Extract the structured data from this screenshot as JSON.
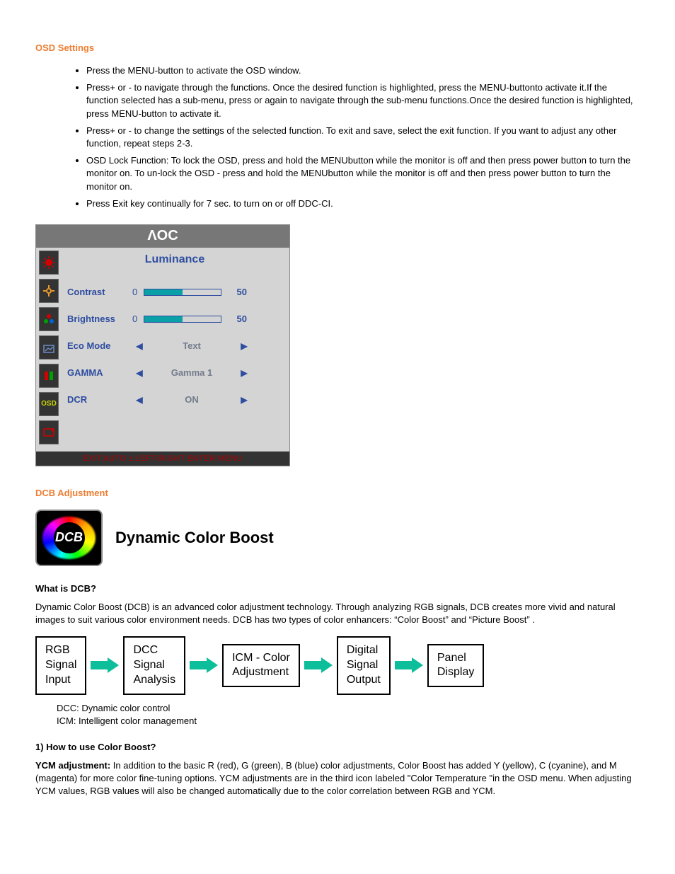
{
  "headings": {
    "osd_settings": "OSD Settings",
    "dcb_adjustment": "DCB Adjustment",
    "what_is_dcb": "What is DCB?",
    "how_to_use": "1) How to use Color Boost?"
  },
  "bullets": [
    "Press the MENU-button to activate the OSD window.",
    "Press+ or - to navigate through the functions. Once the desired function is highlighted, press the MENU-buttonto activate it.If the function selected has a sub-menu, press or again to navigate through the sub-menu functions.Once the desired function is highlighted, press MENU-button to activate it.",
    "Press+ or - to change the settings of the selected function. To exit and save, select the exit function. If you want to adjust any other function, repeat steps 2-3.",
    "OSD Lock Function: To lock the OSD, press and hold the MENUbutton while the monitor is off and then press power button to turn the monitor on. To un-lock the OSD - press and hold the MENUbutton while the monitor is off and then press power button to turn the monitor on.",
    "Press Exit key continually for 7 sec. to turn on or off DDC-CI."
  ],
  "osd": {
    "logo": "ΛOC",
    "title": "Luminance",
    "title_color": "#2d4da0",
    "footer": "EXIT:AUTO  ±:LEFT/RIGHT  ENTER:MENU",
    "footer_color": "#b00000",
    "rows": {
      "contrast": {
        "label": "Contrast",
        "min": "0",
        "value": "50",
        "fill_pct": 50
      },
      "brightness": {
        "label": "Brightness",
        "min": "0",
        "value": "50",
        "fill_pct": 50
      },
      "eco": {
        "label": "Eco Mode",
        "value": "Text"
      },
      "gamma": {
        "label": "GAMMA",
        "value": "Gamma 1"
      },
      "dcr": {
        "label": "DCR",
        "value": "ON"
      }
    },
    "bar_fill_color": "#0aa0a8",
    "bar_border_color": "#2d4da0",
    "panel_bg": "#d4d4d4",
    "icon_colors": {
      "luminance": "#d40000",
      "position": "#e89a2a",
      "color": [
        "#d40000",
        "#00a000",
        "#0066d4"
      ],
      "boost": "#6a8bc6",
      "bars": [
        "#d40000",
        "#00a000"
      ],
      "osd": "#c6d400",
      "extra": "#d40000"
    }
  },
  "dcb": {
    "logo_text": "DCB",
    "title": "Dynamic Color Boost",
    "desc": "Dynamic Color Boost (DCB) is an advanced color adjustment technology. Through analyzing RGB signals, DCB creates more vivid and natural images to suit various color environment needs. DCB has two types of color enhancers: “Color Boost” and “Picture Boost” .",
    "flow": {
      "nodes": [
        "RGB\nSignal\nInput",
        "DCC\nSignal\nAnalysis",
        "ICM - Color\nAdjustment",
        "Digital\nSignal\nOutput",
        "Panel\nDisplay"
      ],
      "arrow_color": "#0cbf9a",
      "box_border": "#000000"
    },
    "legend": [
      "DCC: Dynamic color control",
      "ICM: Intelligent color management"
    ],
    "ycm_lead": "YCM adjustment:",
    "ycm_body": " In addition to the basic R (red), G (green), B (blue) color adjustments, Color Boost has added Y (yellow), C (cyanine), and M (magenta) for more color fine-tuning options. YCM adjustments are in the third icon labeled \"Color Temperature \"in the OSD menu. When adjusting YCM values, RGB values will also be changed automatically due to the color correlation between RGB and YCM."
  }
}
